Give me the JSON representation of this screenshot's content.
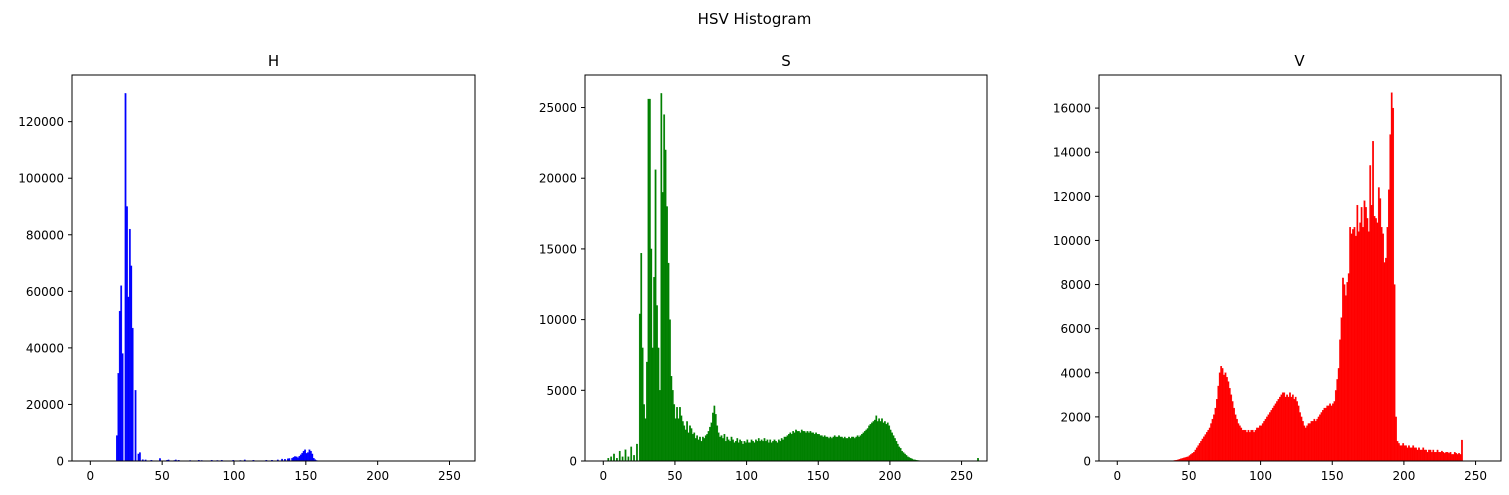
{
  "figure": {
    "title": "HSV Histogram"
  },
  "chart_data": [
    {
      "type": "bar",
      "title": "H",
      "color": "#0000ff",
      "xlabel": "",
      "ylabel": "",
      "xlim": [
        -12.75,
        267.75
      ],
      "ylim": [
        0,
        136500
      ],
      "grid": false,
      "x_ticks": [
        0,
        50,
        100,
        150,
        200,
        250
      ],
      "y_ticks": [
        0,
        20000,
        40000,
        60000,
        80000,
        100000,
        120000
      ],
      "x_start": 0,
      "values": [
        0,
        0,
        0,
        0,
        0,
        0,
        0,
        0,
        0,
        0,
        0,
        0,
        0,
        0,
        0,
        0,
        0,
        0,
        9000,
        31000,
        53000,
        62000,
        38000,
        0,
        130000,
        90000,
        58000,
        82000,
        69000,
        47000,
        0,
        25000,
        0,
        2500,
        3000,
        0,
        500,
        0,
        400,
        0,
        0,
        0,
        300,
        0,
        0,
        0,
        0,
        0,
        900,
        0,
        0,
        0,
        0,
        300,
        400,
        0,
        0,
        0,
        200,
        400,
        0,
        300,
        0,
        0,
        0,
        0,
        0,
        0,
        0,
        200,
        0,
        0,
        0,
        0,
        0,
        300,
        0,
        200,
        0,
        0,
        0,
        0,
        0,
        0,
        300,
        0,
        0,
        0,
        200,
        0,
        0,
        300,
        0,
        0,
        0,
        0,
        0,
        0,
        0,
        300,
        0,
        0,
        0,
        0,
        200,
        0,
        0,
        400,
        0,
        0,
        0,
        0,
        0,
        300,
        0,
        0,
        0,
        0,
        0,
        0,
        0,
        0,
        300,
        0,
        0,
        0,
        300,
        0,
        0,
        0,
        400,
        0,
        0,
        700,
        0,
        600,
        0,
        800,
        900,
        0,
        1000,
        1300,
        1600,
        1500,
        1200,
        1700,
        2200,
        2800,
        3500,
        4000,
        2700,
        3000,
        4000,
        3500,
        2500,
        1000,
        500,
        200,
        100,
        0,
        0,
        0,
        0,
        0,
        0,
        0,
        0,
        0,
        0,
        0,
        0,
        0,
        0,
        0,
        0,
        0,
        0,
        0,
        0,
        0,
        0,
        0,
        0,
        0,
        0,
        0,
        0,
        0,
        0,
        0,
        0,
        0,
        0,
        0,
        0,
        0,
        0,
        0,
        0,
        0,
        0,
        0,
        0,
        0,
        0,
        0,
        0,
        0,
        0,
        0,
        0,
        0,
        0,
        0,
        0,
        0,
        0,
        0,
        0,
        0,
        0,
        0,
        0,
        0,
        0,
        0,
        0,
        0,
        0,
        0,
        0,
        0,
        0,
        0,
        0,
        0,
        0,
        0,
        0,
        0,
        0,
        0,
        0,
        0,
        0,
        0,
        0,
        0,
        0,
        0,
        0,
        0,
        0,
        0,
        0,
        0,
        0,
        0,
        0,
        0,
        0,
        0,
        0,
        0,
        0
      ]
    },
    {
      "type": "bar",
      "title": "S",
      "color": "#008000",
      "xlabel": "",
      "ylabel": "",
      "xlim": [
        -12.75,
        267.75
      ],
      "ylim": [
        0,
        27300
      ],
      "grid": false,
      "x_ticks": [
        0,
        50,
        100,
        150,
        200,
        250
      ],
      "y_ticks": [
        0,
        5000,
        10000,
        15000,
        20000,
        25000
      ],
      "x_start": 0,
      "values": [
        0,
        0,
        0,
        200,
        0,
        300,
        0,
        500,
        0,
        200,
        0,
        700,
        0,
        300,
        0,
        800,
        0,
        300,
        0,
        1000,
        0,
        400,
        0,
        1200,
        0,
        10400,
        14700,
        8000,
        4000,
        3000,
        7000,
        25600,
        25600,
        15000,
        8000,
        13000,
        20600,
        11000,
        8000,
        5000,
        26000,
        19000,
        24500,
        22000,
        18000,
        14000,
        10000,
        6000,
        5000,
        4000,
        3000,
        3800,
        3000,
        3800,
        3200,
        2800,
        2500,
        2200,
        2800,
        2000,
        2500,
        2300,
        1900,
        2000,
        1600,
        1800,
        1500,
        1700,
        1400,
        1700,
        1600,
        1800,
        1900,
        2100,
        2400,
        2700,
        3400,
        3900,
        3300,
        2500,
        2000,
        1700,
        1800,
        1600,
        1900,
        1400,
        1700,
        1500,
        1400,
        1700,
        1500,
        1300,
        1400,
        1600,
        1300,
        1500,
        1400,
        1200,
        1400,
        1300,
        1500,
        1300,
        1300,
        1500,
        1400,
        1300,
        1500,
        1400,
        1600,
        1400,
        1500,
        1400,
        1600,
        1400,
        1500,
        1300,
        1500,
        1300,
        1400,
        1500,
        1400,
        1300,
        1500,
        1400,
        1600,
        1500,
        1700,
        1700,
        1800,
        1900,
        2000,
        1900,
        2100,
        2000,
        2200,
        2100,
        2100,
        2000,
        2200,
        2100,
        2100,
        2000,
        2100,
        2000,
        2100,
        2000,
        2000,
        1900,
        2000,
        1900,
        1900,
        1800,
        1800,
        1700,
        1800,
        1700,
        1700,
        1600,
        1700,
        1600,
        1700,
        1800,
        1700,
        1700,
        1800,
        1700,
        1700,
        1600,
        1700,
        1600,
        1600,
        1700,
        1600,
        1700,
        1700,
        1600,
        1700,
        1800,
        1700,
        1800,
        1900,
        2000,
        2100,
        2200,
        2300,
        2500,
        2600,
        2700,
        2800,
        2900,
        3200,
        2800,
        3000,
        2800,
        3000,
        2700,
        2800,
        2600,
        2700,
        2500,
        2200,
        2000,
        1800,
        1600,
        1400,
        1200,
        1000,
        900,
        700,
        600,
        500,
        400,
        300,
        250,
        200,
        150,
        100,
        80,
        60,
        40,
        30,
        20,
        10,
        0,
        0,
        0,
        0,
        0,
        0,
        0,
        0,
        0,
        0,
        0,
        0,
        0,
        0,
        0,
        0,
        0,
        0,
        0,
        0,
        0,
        0,
        0,
        0,
        0,
        0,
        0,
        0,
        0,
        0,
        0,
        0,
        0,
        0,
        0,
        0,
        0,
        0,
        200
      ]
    },
    {
      "type": "bar",
      "title": "V",
      "color": "#ff0000",
      "xlabel": "",
      "ylabel": "",
      "xlim": [
        -12.75,
        267.75
      ],
      "ylim": [
        0,
        17500
      ],
      "grid": false,
      "x_ticks": [
        0,
        50,
        100,
        150,
        200,
        250
      ],
      "y_ticks": [
        0,
        2000,
        4000,
        6000,
        8000,
        10000,
        12000,
        14000,
        16000
      ],
      "x_start": 0,
      "values": [
        0,
        0,
        0,
        0,
        0,
        0,
        0,
        0,
        0,
        0,
        0,
        0,
        0,
        0,
        0,
        0,
        0,
        0,
        0,
        0,
        0,
        0,
        0,
        0,
        0,
        0,
        0,
        0,
        0,
        0,
        0,
        0,
        0,
        0,
        0,
        0,
        0,
        0,
        10,
        20,
        30,
        40,
        60,
        80,
        100,
        120,
        140,
        160,
        180,
        200,
        250,
        300,
        350,
        400,
        500,
        600,
        700,
        800,
        900,
        1000,
        1100,
        1200,
        1300,
        1400,
        1500,
        1700,
        1900,
        2100,
        2400,
        2800,
        3400,
        4000,
        4300,
        4200,
        3900,
        4000,
        3800,
        3600,
        3300,
        3000,
        2700,
        2400,
        2100,
        1900,
        1700,
        1600,
        1500,
        1400,
        1400,
        1400,
        1300,
        1400,
        1300,
        1400,
        1400,
        1300,
        1400,
        1500,
        1500,
        1600,
        1600,
        1700,
        1800,
        1900,
        2000,
        2100,
        2200,
        2300,
        2400,
        2500,
        2600,
        2700,
        2800,
        2900,
        3000,
        3100,
        3100,
        2900,
        3000,
        2900,
        3100,
        2900,
        3000,
        2800,
        2900,
        2700,
        2500,
        2200,
        2000,
        1800,
        1600,
        1500,
        1600,
        1700,
        1700,
        1800,
        1800,
        1900,
        1800,
        1900,
        2000,
        2100,
        2200,
        2300,
        2400,
        2400,
        2500,
        2500,
        2600,
        2500,
        2600,
        2700,
        3200,
        3700,
        4200,
        5500,
        6500,
        8300,
        8000,
        7500,
        8100,
        8500,
        10600,
        10300,
        10500,
        10600,
        10200,
        11600,
        10400,
        10800,
        11500,
        10600,
        11800,
        11500,
        11000,
        10400,
        13400,
        11600,
        14500,
        11100,
        11000,
        10800,
        12400,
        11900,
        10600,
        10300,
        9000,
        9200,
        10600,
        12300,
        14800,
        16700,
        16000,
        8000,
        2000,
        900,
        800,
        700,
        700,
        800,
        700,
        700,
        600,
        700,
        600,
        600,
        700,
        600,
        600,
        500,
        600,
        500,
        500,
        600,
        500,
        500,
        400,
        500,
        500,
        400,
        500,
        400,
        400,
        500,
        400,
        400,
        450,
        400,
        350,
        400,
        400,
        350,
        400,
        300,
        300,
        400,
        350,
        300,
        350,
        300,
        950
      ]
    }
  ]
}
